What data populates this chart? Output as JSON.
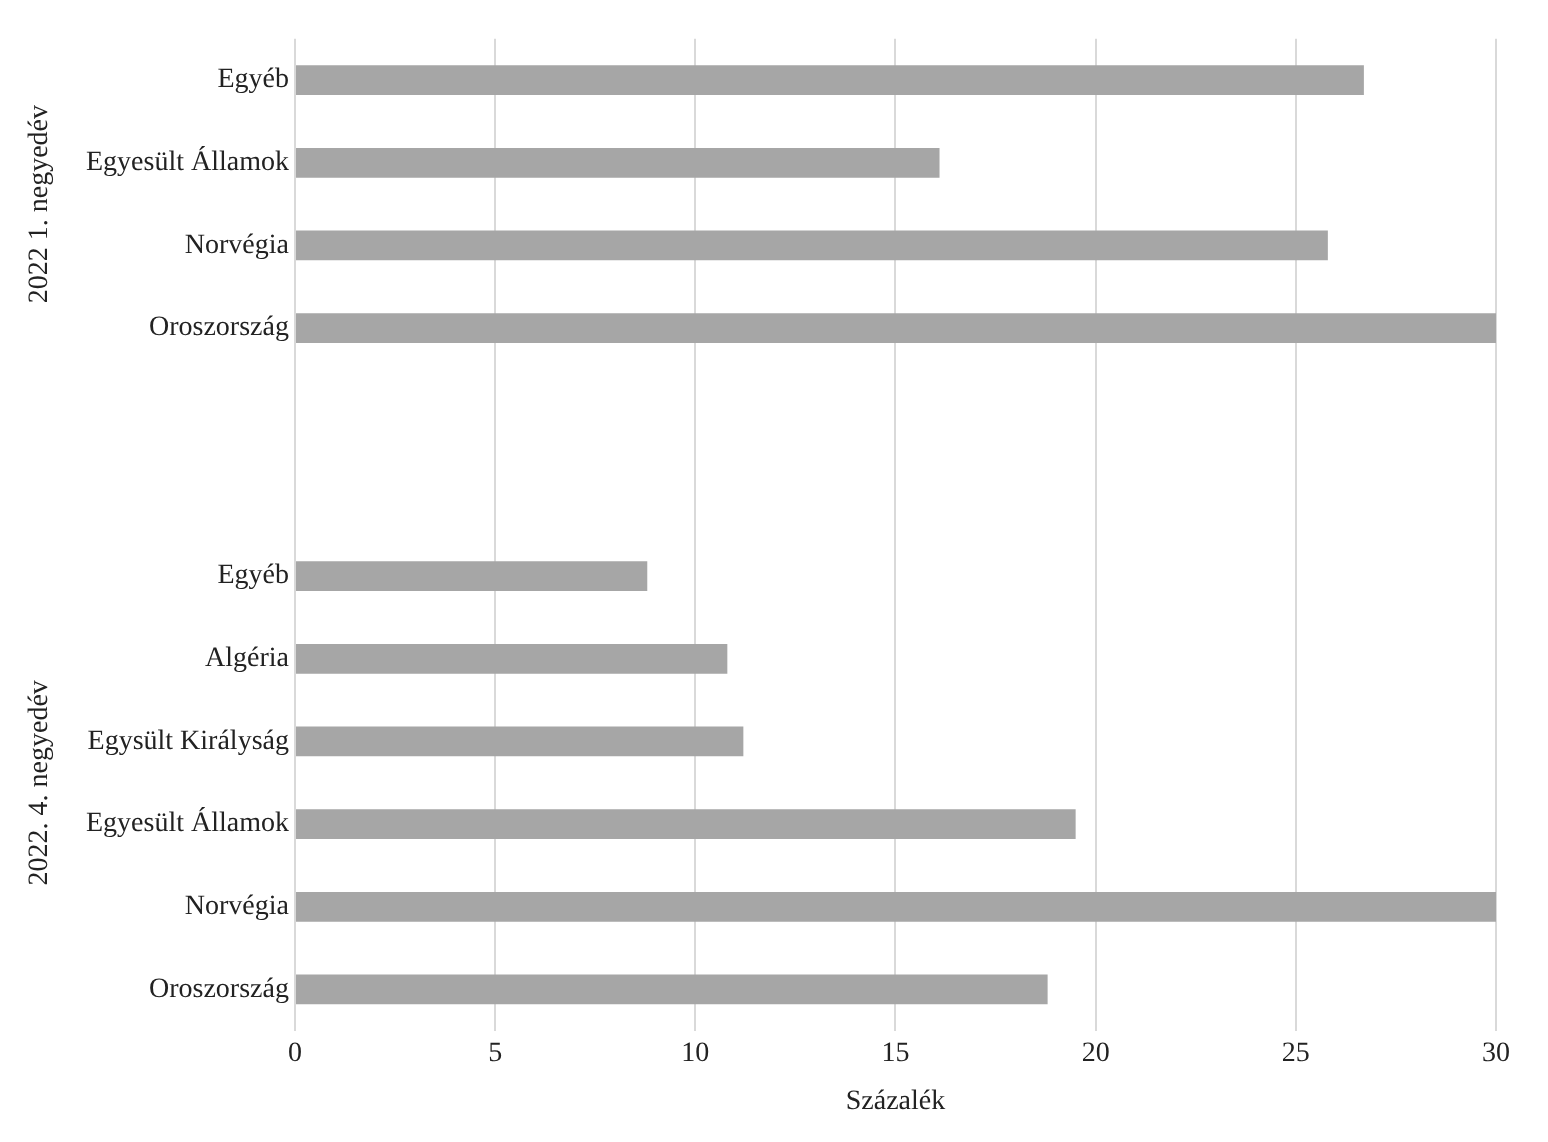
{
  "chart_data": {
    "type": "bar",
    "orientation": "horizontal",
    "xlabel": "Százalék",
    "categories": [
      "Egyéb",
      "Egyesült Államok",
      "Norvégia",
      "Oroszország",
      null,
      null,
      "Egyéb",
      "Algéria",
      "Egysült Királyság",
      "Egyesült Államok",
      "Norvégia",
      "Oroszország"
    ],
    "values": [
      26.7,
      16.1,
      25.8,
      30,
      null,
      null,
      8.8,
      10.8,
      11.2,
      19.5,
      30,
      18.8
    ],
    "color": "#a6a6a6",
    "xlim": [
      0,
      30
    ],
    "xticks": [
      0,
      5,
      10,
      15,
      20,
      25,
      30
    ],
    "grid": "x",
    "legend": false,
    "annotations": [
      "2022 1. negyedév",
      "2022. 4. negyedév"
    ]
  }
}
